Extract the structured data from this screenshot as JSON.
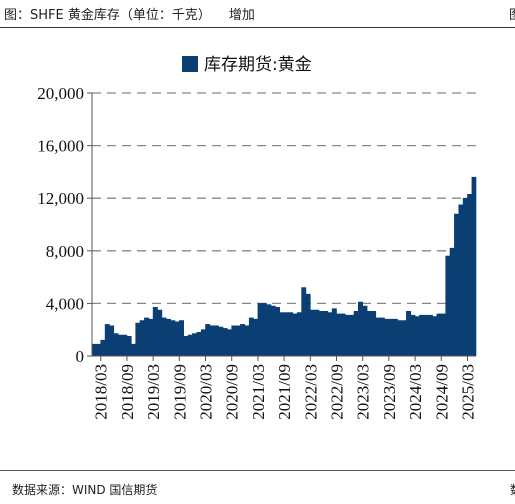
{
  "header": {
    "title": "图：SHFE 黄金库存（单位：千克）",
    "tag": "增加",
    "right_mark": "图"
  },
  "footer": {
    "source": "数据来源：WIND 国信期货",
    "right_mark": "数"
  },
  "colors": {
    "series": "#0b3f73",
    "grid": "#888888"
  },
  "chart_data": {
    "type": "area",
    "title": "",
    "xlabel": "",
    "ylabel": "",
    "ylim": [
      0,
      20000
    ],
    "yticks": [
      "0",
      "4,000",
      "8,000",
      "12,000",
      "16,000",
      "20,000"
    ],
    "ytick_values": [
      0,
      4000,
      8000,
      12000,
      16000,
      20000
    ],
    "xticks": [
      "2018/03",
      "2018/09",
      "2019/03",
      "2019/09",
      "2020/03",
      "2020/09",
      "2021/03",
      "2021/09",
      "2022/03",
      "2022/09",
      "2023/03",
      "2023/09",
      "2024/03",
      "2024/09",
      "2025/03"
    ],
    "grid": "horizontal dashed",
    "legend": {
      "position": "top-center",
      "entries": [
        "库存期货:黄金"
      ]
    },
    "series": [
      {
        "name": "库存期货:黄金",
        "x": [
          "2018-01",
          "2018-02",
          "2018-03",
          "2018-04",
          "2018-05",
          "2018-06",
          "2018-07",
          "2018-08",
          "2018-09",
          "2018-10",
          "2018-11",
          "2018-12",
          "2019-01",
          "2019-02",
          "2019-03",
          "2019-04",
          "2019-05",
          "2019-06",
          "2019-07",
          "2019-08",
          "2019-09",
          "2019-10",
          "2019-11",
          "2019-12",
          "2020-01",
          "2020-02",
          "2020-03",
          "2020-04",
          "2020-05",
          "2020-06",
          "2020-07",
          "2020-08",
          "2020-09",
          "2020-10",
          "2020-11",
          "2020-12",
          "2021-01",
          "2021-02",
          "2021-03",
          "2021-04",
          "2021-05",
          "2021-06",
          "2021-07",
          "2021-08",
          "2021-09",
          "2021-10",
          "2021-11",
          "2021-12",
          "2022-01",
          "2022-02",
          "2022-03",
          "2022-04",
          "2022-05",
          "2022-06",
          "2022-07",
          "2022-08",
          "2022-09",
          "2022-10",
          "2022-11",
          "2022-12",
          "2023-01",
          "2023-02",
          "2023-03",
          "2023-04",
          "2023-05",
          "2023-06",
          "2023-07",
          "2023-08",
          "2023-09",
          "2023-10",
          "2023-11",
          "2023-12",
          "2024-01",
          "2024-02",
          "2024-03",
          "2024-04",
          "2024-05",
          "2024-06",
          "2024-07",
          "2024-08",
          "2024-09",
          "2024-10",
          "2024-11",
          "2024-12",
          "2025-01",
          "2025-02",
          "2025-03",
          "2025-04"
        ],
        "values": [
          900,
          900,
          1200,
          2400,
          2300,
          1700,
          1600,
          1600,
          1500,
          900,
          2500,
          2700,
          2900,
          2800,
          3700,
          3500,
          2900,
          2800,
          2700,
          2600,
          2700,
          1500,
          1600,
          1700,
          1800,
          2000,
          2400,
          2300,
          2300,
          2200,
          2100,
          2000,
          2300,
          2300,
          2400,
          2300,
          2900,
          2800,
          4000,
          4000,
          3900,
          3800,
          3700,
          3300,
          3300,
          3300,
          3200,
          3300,
          5200,
          4700,
          3500,
          3500,
          3400,
          3400,
          3300,
          3600,
          3200,
          3200,
          3100,
          3100,
          3400,
          4100,
          3800,
          3400,
          3400,
          2900,
          2900,
          2800,
          2800,
          2800,
          2700,
          2700,
          3400,
          3100,
          3000,
          3100,
          3100,
          3100,
          3000,
          3200,
          3200,
          7600,
          8200,
          10800,
          11500,
          12000,
          12300,
          13600
        ]
      }
    ]
  }
}
